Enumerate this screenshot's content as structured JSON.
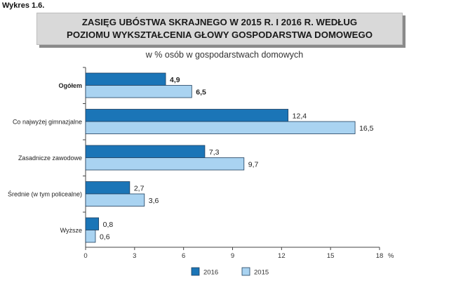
{
  "figure_label": "Wykres 1.6.",
  "title_lines": [
    "ZASIĘG UBÓSTWA SKRAJNEGO W 2015 R. I 2016 R. WEDŁUG",
    "POZIOMU WYKSZTAŁCENIA GŁOWY GOSPODARSTWA DOMOWEGO"
  ],
  "colors": {
    "2016": "#1b75b7",
    "2015": "#a9d3f1",
    "bar_border": "#1f3f5e"
  },
  "chart_data": {
    "type": "bar",
    "orientation": "horizontal",
    "subtitle": "w % osób w gospodarstwach domowych",
    "categories": [
      "Ogółem",
      "Co najwyżej gimnazjalne",
      "Zasadnicze zawodowe",
      "Średnie (w tym policealne)",
      "Wyższe"
    ],
    "category_labels_bold": [
      true,
      false,
      false,
      false,
      false
    ],
    "series": [
      {
        "name": "2016",
        "values": [
          4.9,
          12.4,
          7.3,
          2.7,
          0.8
        ],
        "labels": [
          "4,9",
          "12,4",
          "7,3",
          "2,7",
          "0,8"
        ]
      },
      {
        "name": "2015",
        "values": [
          6.5,
          16.5,
          9.7,
          3.6,
          0.6
        ],
        "labels": [
          "6,5",
          "16,5",
          "9,7",
          "3,6",
          "0,6"
        ]
      }
    ],
    "xlim": [
      0,
      18
    ],
    "xticks": [
      "0",
      "3",
      "6",
      "9",
      "12",
      "15",
      "18"
    ],
    "xtick_values": [
      0,
      3,
      6,
      9,
      12,
      15,
      18
    ],
    "x_unit": "%",
    "grid": false,
    "legend_position": "bottom"
  }
}
